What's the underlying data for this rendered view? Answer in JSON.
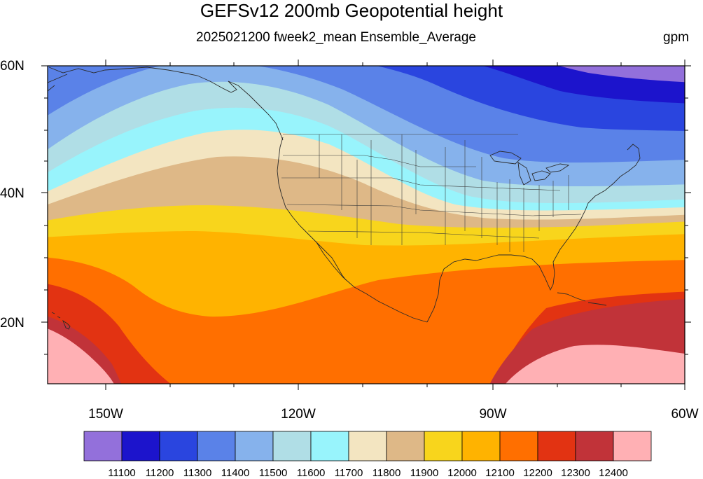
{
  "title": "GEFSv12 200mb Geopotential height",
  "subtitle": "2025021200 fweek2_mean Ensemble_Average",
  "units": "gpm",
  "lat_labels": [
    "60N",
    "40N",
    "20N"
  ],
  "lon_labels": [
    "150W",
    "120W",
    "90W",
    "60W"
  ],
  "colorbar": {
    "colors": [
      "#9370DB",
      "#1C14CC",
      "#2A45DF",
      "#5A82E8",
      "#86B2EC",
      "#B0DEE6",
      "#98F4FC",
      "#F3E5C1",
      "#DEB887",
      "#F8D51C",
      "#FFB300",
      "#FF6F00",
      "#E23312",
      "#C13339",
      "#FFB0B4"
    ],
    "labels": [
      "11100",
      "11200",
      "11300",
      "11400",
      "11500",
      "11600",
      "11700",
      "11800",
      "11900",
      "12000",
      "12100",
      "12200",
      "12300",
      "12400"
    ]
  },
  "chart_data": {
    "type": "filled contour map",
    "title": "GEFSv12 200mb Geopotential height",
    "subtitle": "2025021200 fweek2_mean Ensemble_Average",
    "units": "gpm",
    "lon_range": [
      -160,
      -60
    ],
    "lat_range": [
      10,
      60
    ],
    "lon_ticks": [
      -150,
      -120,
      -90,
      -60
    ],
    "lat_ticks": [
      20,
      40,
      60
    ],
    "contour_levels": [
      11100,
      11200,
      11300,
      11400,
      11500,
      11600,
      11700,
      11800,
      11900,
      12000,
      12100,
      12200,
      12300,
      12400
    ]
  }
}
